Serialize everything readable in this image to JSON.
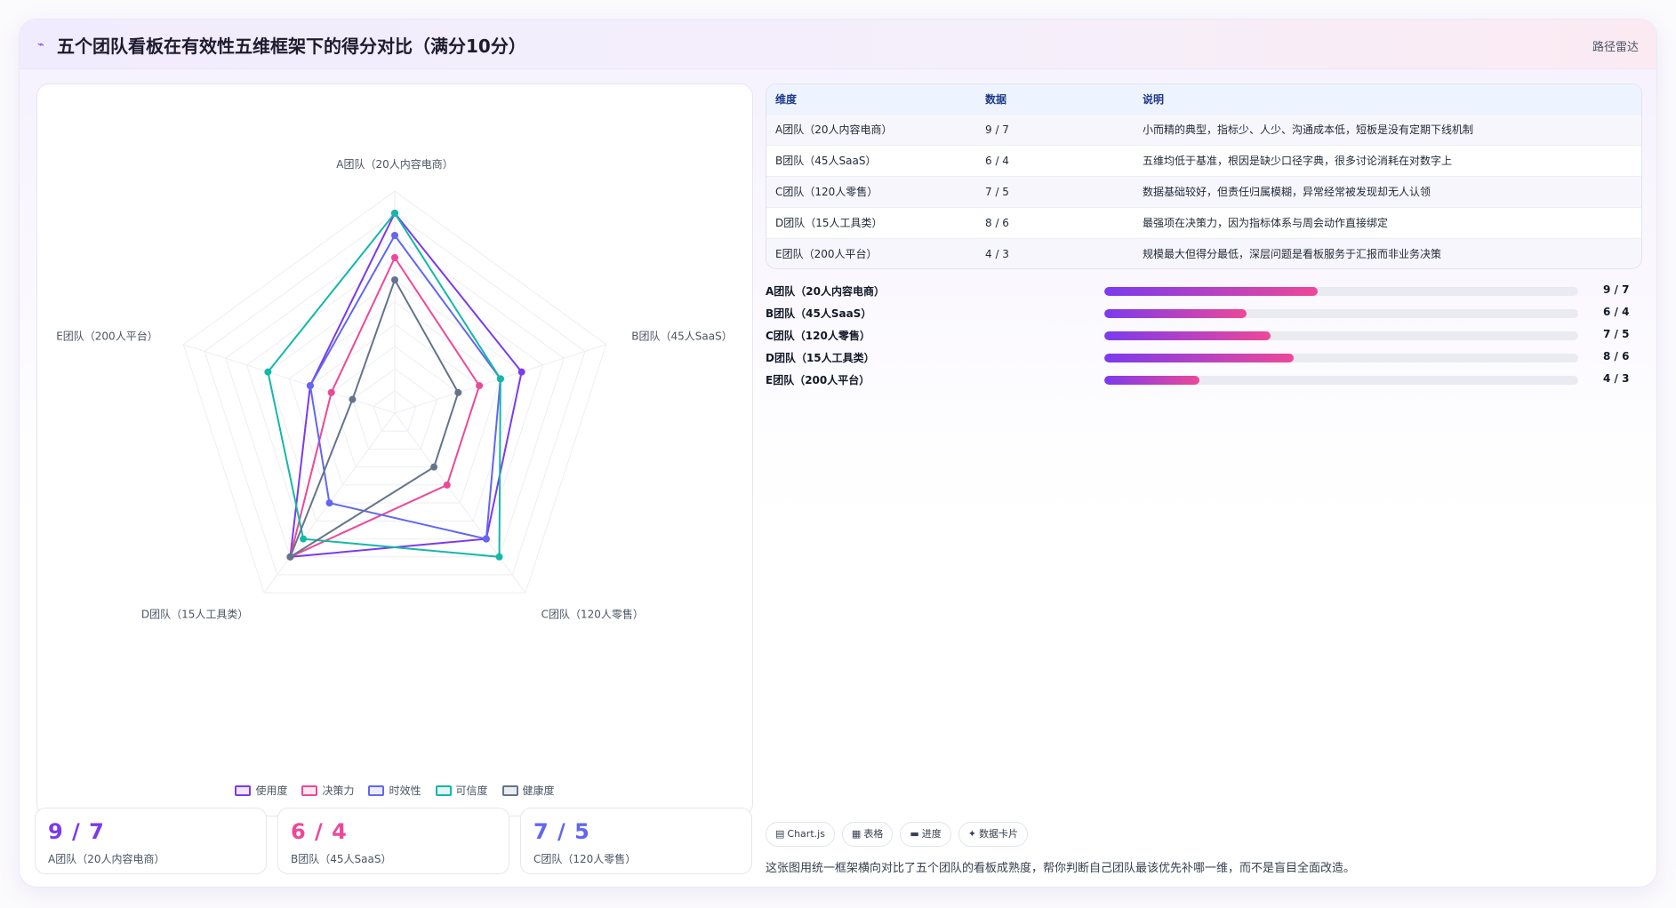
{
  "header": {
    "icon": "⌁",
    "title": "五个团队看板在有效性五维框架下的得分对比（满分10分）",
    "action": "路径雷达"
  },
  "chart_data": {
    "type": "radar",
    "axes": [
      "A团队（20人内容电商）",
      "B团队（45人SaaS）",
      "C团队（120人零售）",
      "D团队（15人工具类）",
      "E团队（200人平台）"
    ],
    "range": [
      0,
      10
    ],
    "levels": 10,
    "series": [
      {
        "name": "使用度",
        "color": "#7c3aed",
        "values": [
          9,
          6,
          7,
          8,
          4
        ]
      },
      {
        "name": "决策力",
        "color": "#ec4899",
        "values": [
          7,
          4,
          4,
          8,
          3
        ]
      },
      {
        "name": "时效性",
        "color": "#6366f1",
        "values": [
          8,
          5,
          7,
          5,
          4
        ]
      },
      {
        "name": "可信度",
        "color": "#14b8a6",
        "values": [
          9,
          5,
          8,
          7,
          6
        ]
      },
      {
        "name": "健康度",
        "color": "#64748b",
        "values": [
          6,
          3,
          3,
          8,
          2
        ]
      }
    ]
  },
  "kpis": [
    {
      "value": "9 / 7",
      "label": "A团队（20人内容电商）",
      "color": "#7c3aed"
    },
    {
      "value": "6 / 4",
      "label": "B团队（45人SaaS）",
      "color": "#ec4899"
    },
    {
      "value": "7 / 5",
      "label": "C团队（120人零售）",
      "color": "#6366f1"
    }
  ],
  "table": {
    "headers": [
      "维度",
      "数据",
      "说明"
    ],
    "rows": [
      [
        "A团队（20人内容电商）",
        "9 / 7",
        "小而精的典型，指标少、人少、沟通成本低，短板是没有定期下线机制"
      ],
      [
        "B团队（45人SaaS）",
        "6 / 4",
        "五维均低于基准，根因是缺少口径字典，很多讨论消耗在对数字上"
      ],
      [
        "C团队（120人零售）",
        "7 / 5",
        "数据基础较好，但责任归属模糊，异常经常被发现却无人认领"
      ],
      [
        "D团队（15人工具类）",
        "8 / 6",
        "最强项在决策力，因为指标体系与周会动作直接绑定"
      ],
      [
        "E团队（200人平台）",
        "4 / 3",
        "规模最大但得分最低，深层问题是看板服务于汇报而非业务决策"
      ]
    ]
  },
  "progress": [
    {
      "label": "A团队（20人内容电商）",
      "value": "9 / 7",
      "fraction": 0.45
    },
    {
      "label": "B团队（45人SaaS）",
      "value": "6 / 4",
      "fraction": 0.3
    },
    {
      "label": "C团队（120人零售）",
      "value": "7 / 5",
      "fraction": 0.35
    },
    {
      "label": "D团队（15人工具类）",
      "value": "8 / 6",
      "fraction": 0.4
    },
    {
      "label": "E团队（200人平台）",
      "value": "4 / 3",
      "fraction": 0.2
    }
  ],
  "chips": [
    {
      "icon": "▤",
      "label": "Chart.js"
    },
    {
      "icon": "▦",
      "label": "表格"
    },
    {
      "icon": "▬",
      "label": "进度"
    },
    {
      "icon": "✦",
      "label": "数据卡片"
    }
  ],
  "footnote": "这张图用统一框架横向对比了五个团队的看板成熟度，帮你判断自己团队最该优先补哪一维，而不是盲目全面改造。"
}
